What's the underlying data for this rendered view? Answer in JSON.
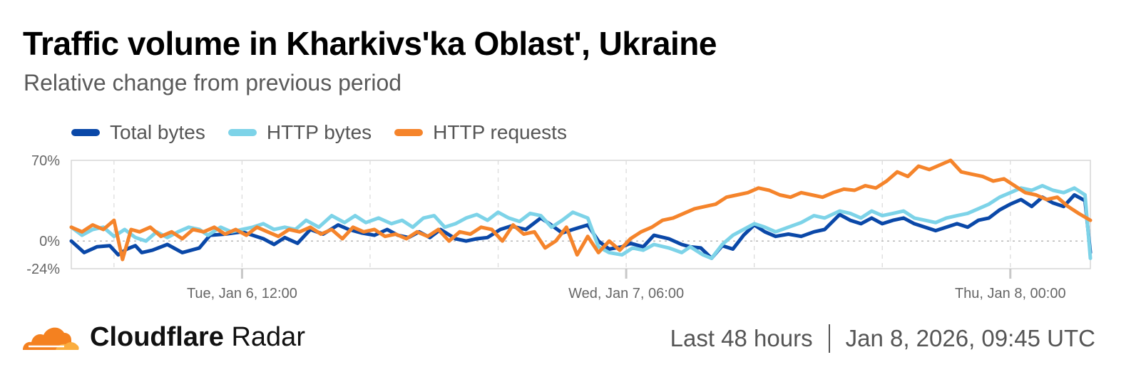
{
  "title": "Traffic volume in Kharkivs'ka Oblast', Ukraine",
  "subtitle": "Relative change from previous period",
  "footer": {
    "brand_bold": "Cloudflare",
    "brand_light": "Radar",
    "range": "Last 48 hours",
    "timestamp": "Jan 8, 2026, 09:45 UTC"
  },
  "colors": {
    "total_bytes": "#0a48a8",
    "http_bytes": "#7dd3e8",
    "http_requests": "#f5842b"
  },
  "chart_data": {
    "type": "line",
    "y_tick_labels": [
      "70%",
      "0%",
      "-24%"
    ],
    "y_ticks": [
      70,
      0,
      -24
    ],
    "ylim": [
      -24,
      70
    ],
    "x_tick_labels": [
      "Tue, Jan 6, 12:00",
      "Wed, Jan 7, 06:00",
      "Thu, Jan 8, 00:00"
    ],
    "x_tick_positions": [
      8,
      26,
      44
    ],
    "xlim": [
      0,
      47.75
    ],
    "grid": true,
    "legend_position": "top-left",
    "series": [
      {
        "name": "Total bytes",
        "color": "#0a48a8",
        "points": [
          [
            0,
            0
          ],
          [
            0.6,
            -10
          ],
          [
            1.2,
            -5
          ],
          [
            1.8,
            -4
          ],
          [
            2.2,
            -12
          ],
          [
            2.6,
            -7
          ],
          [
            3,
            -4
          ],
          [
            3.3,
            -10
          ],
          [
            3.8,
            -8
          ],
          [
            4.5,
            -3
          ],
          [
            5.2,
            -10
          ],
          [
            6,
            -6
          ],
          [
            6.5,
            5
          ],
          [
            7.2,
            6
          ],
          [
            8,
            8
          ],
          [
            8.5,
            5
          ],
          [
            9,
            2
          ],
          [
            9.5,
            -3
          ],
          [
            10,
            3
          ],
          [
            10.6,
            -2
          ],
          [
            11.2,
            10
          ],
          [
            11.8,
            6
          ],
          [
            12.5,
            14
          ],
          [
            13,
            10
          ],
          [
            13.6,
            7
          ],
          [
            14.2,
            5
          ],
          [
            14.8,
            10
          ],
          [
            15.3,
            5
          ],
          [
            15.8,
            3
          ],
          [
            16.3,
            8
          ],
          [
            16.8,
            3
          ],
          [
            17.3,
            10
          ],
          [
            18,
            2
          ],
          [
            18.5,
            0
          ],
          [
            19,
            2
          ],
          [
            19.5,
            3
          ],
          [
            20.1,
            10
          ],
          [
            20.6,
            13
          ],
          [
            21.3,
            10
          ],
          [
            22,
            20
          ],
          [
            22.4,
            15
          ],
          [
            23,
            7
          ],
          [
            23.5,
            10
          ],
          [
            24.2,
            14
          ],
          [
            24.7,
            0
          ],
          [
            25.2,
            -7
          ],
          [
            25.8,
            -5
          ],
          [
            26.2,
            -2
          ],
          [
            26.8,
            -5
          ],
          [
            27.3,
            5
          ],
          [
            28,
            2
          ],
          [
            28.6,
            -3
          ],
          [
            29,
            -5
          ],
          [
            29.5,
            -6
          ],
          [
            30,
            -15
          ],
          [
            30.5,
            -4
          ],
          [
            31,
            -7
          ],
          [
            31.5,
            5
          ],
          [
            32,
            14
          ],
          [
            32.5,
            8
          ],
          [
            33,
            4
          ],
          [
            33.6,
            6
          ],
          [
            34.2,
            4
          ],
          [
            34.8,
            8
          ],
          [
            35.3,
            10
          ],
          [
            36,
            23
          ],
          [
            36.5,
            18
          ],
          [
            37,
            15
          ],
          [
            37.5,
            20
          ],
          [
            38,
            15
          ],
          [
            38.5,
            18
          ],
          [
            39,
            20
          ],
          [
            39.5,
            15
          ],
          [
            40,
            12
          ],
          [
            40.5,
            9
          ],
          [
            41,
            12
          ],
          [
            41.5,
            15
          ],
          [
            42,
            12
          ],
          [
            42.5,
            18
          ],
          [
            43,
            20
          ],
          [
            43.5,
            27
          ],
          [
            44,
            32
          ],
          [
            44.5,
            36
          ],
          [
            45,
            30
          ],
          [
            45.5,
            38
          ],
          [
            46,
            33
          ],
          [
            46.5,
            30
          ],
          [
            47,
            40
          ],
          [
            47.5,
            35
          ],
          [
            47.75,
            -10
          ]
        ]
      },
      {
        "name": "HTTP bytes",
        "color": "#7dd3e8",
        "points": [
          [
            0,
            12
          ],
          [
            0.5,
            5
          ],
          [
            1,
            10
          ],
          [
            1.5,
            12
          ],
          [
            2,
            4
          ],
          [
            2.5,
            10
          ],
          [
            3,
            3
          ],
          [
            3.5,
            0
          ],
          [
            4,
            8
          ],
          [
            4.5,
            3
          ],
          [
            5,
            8
          ],
          [
            5.5,
            12
          ],
          [
            6,
            10
          ],
          [
            6.4,
            5
          ],
          [
            7,
            12
          ],
          [
            7.5,
            8
          ],
          [
            8,
            10
          ],
          [
            8.5,
            12
          ],
          [
            9,
            15
          ],
          [
            9.5,
            10
          ],
          [
            10,
            12
          ],
          [
            10.5,
            10
          ],
          [
            11,
            18
          ],
          [
            11.6,
            12
          ],
          [
            12.2,
            22
          ],
          [
            12.8,
            16
          ],
          [
            13.3,
            22
          ],
          [
            13.8,
            16
          ],
          [
            14.4,
            20
          ],
          [
            15,
            15
          ],
          [
            15.5,
            18
          ],
          [
            16,
            12
          ],
          [
            16.5,
            20
          ],
          [
            17,
            22
          ],
          [
            17.5,
            12
          ],
          [
            18,
            15
          ],
          [
            18.5,
            20
          ],
          [
            19,
            23
          ],
          [
            19.5,
            18
          ],
          [
            20,
            25
          ],
          [
            20.5,
            20
          ],
          [
            21,
            17
          ],
          [
            21.5,
            24
          ],
          [
            22,
            22
          ],
          [
            22.5,
            12
          ],
          [
            23,
            18
          ],
          [
            23.5,
            25
          ],
          [
            24.2,
            20
          ],
          [
            24.7,
            -5
          ],
          [
            25.2,
            -10
          ],
          [
            25.8,
            -12
          ],
          [
            26.3,
            -6
          ],
          [
            26.8,
            -8
          ],
          [
            27.3,
            -3
          ],
          [
            28,
            -6
          ],
          [
            28.6,
            -10
          ],
          [
            29,
            -5
          ],
          [
            29.6,
            -12
          ],
          [
            30,
            -15
          ],
          [
            30.5,
            -3
          ],
          [
            31,
            5
          ],
          [
            31.5,
            10
          ],
          [
            32,
            15
          ],
          [
            32.5,
            12
          ],
          [
            33,
            8
          ],
          [
            33.6,
            12
          ],
          [
            34.2,
            16
          ],
          [
            34.8,
            22
          ],
          [
            35.3,
            20
          ],
          [
            36,
            26
          ],
          [
            36.5,
            24
          ],
          [
            37,
            20
          ],
          [
            37.5,
            26
          ],
          [
            38,
            22
          ],
          [
            38.5,
            24
          ],
          [
            39,
            26
          ],
          [
            39.5,
            20
          ],
          [
            40,
            18
          ],
          [
            40.5,
            16
          ],
          [
            41,
            20
          ],
          [
            41.5,
            22
          ],
          [
            42,
            24
          ],
          [
            42.5,
            28
          ],
          [
            43,
            32
          ],
          [
            43.5,
            38
          ],
          [
            44,
            42
          ],
          [
            44.5,
            46
          ],
          [
            45,
            44
          ],
          [
            45.5,
            48
          ],
          [
            46,
            44
          ],
          [
            46.5,
            42
          ],
          [
            47,
            46
          ],
          [
            47.5,
            40
          ],
          [
            47.75,
            -15
          ]
        ]
      },
      {
        "name": "HTTP requests",
        "color": "#f5842b",
        "points": [
          [
            0,
            12
          ],
          [
            0.5,
            8
          ],
          [
            1,
            14
          ],
          [
            1.5,
            10
          ],
          [
            2,
            18
          ],
          [
            2.4,
            -16
          ],
          [
            2.8,
            10
          ],
          [
            3.2,
            8
          ],
          [
            3.7,
            12
          ],
          [
            4.2,
            4
          ],
          [
            4.7,
            8
          ],
          [
            5.2,
            2
          ],
          [
            5.7,
            10
          ],
          [
            6.2,
            8
          ],
          [
            6.7,
            12
          ],
          [
            7.2,
            6
          ],
          [
            7.7,
            10
          ],
          [
            8.2,
            5
          ],
          [
            8.7,
            12
          ],
          [
            9.2,
            8
          ],
          [
            9.7,
            4
          ],
          [
            10.2,
            10
          ],
          [
            10.7,
            8
          ],
          [
            11.2,
            12
          ],
          [
            11.7,
            6
          ],
          [
            12.2,
            10
          ],
          [
            12.7,
            2
          ],
          [
            13.2,
            12
          ],
          [
            13.7,
            8
          ],
          [
            14.2,
            10
          ],
          [
            14.7,
            4
          ],
          [
            15.2,
            6
          ],
          [
            15.7,
            2
          ],
          [
            16.2,
            8
          ],
          [
            16.7,
            4
          ],
          [
            17.2,
            10
          ],
          [
            17.7,
            0
          ],
          [
            18.2,
            8
          ],
          [
            18.7,
            6
          ],
          [
            19.2,
            12
          ],
          [
            19.7,
            10
          ],
          [
            20.2,
            0
          ],
          [
            20.7,
            14
          ],
          [
            21.2,
            6
          ],
          [
            21.7,
            8
          ],
          [
            22.2,
            -6
          ],
          [
            22.7,
            0
          ],
          [
            23.2,
            12
          ],
          [
            23.7,
            -12
          ],
          [
            24.2,
            4
          ],
          [
            24.7,
            -10
          ],
          [
            25.2,
            0
          ],
          [
            25.7,
            -8
          ],
          [
            26.2,
            2
          ],
          [
            26.7,
            8
          ],
          [
            27.2,
            12
          ],
          [
            27.7,
            18
          ],
          [
            28.2,
            20
          ],
          [
            28.7,
            24
          ],
          [
            29.2,
            28
          ],
          [
            29.7,
            30
          ],
          [
            30.2,
            32
          ],
          [
            30.7,
            38
          ],
          [
            31.2,
            40
          ],
          [
            31.7,
            42
          ],
          [
            32.2,
            46
          ],
          [
            32.7,
            44
          ],
          [
            33.2,
            40
          ],
          [
            33.7,
            38
          ],
          [
            34.2,
            42
          ],
          [
            34.7,
            40
          ],
          [
            35.2,
            38
          ],
          [
            35.7,
            42
          ],
          [
            36.2,
            45
          ],
          [
            36.7,
            44
          ],
          [
            37.2,
            48
          ],
          [
            37.7,
            46
          ],
          [
            38.2,
            52
          ],
          [
            38.7,
            60
          ],
          [
            39.2,
            56
          ],
          [
            39.7,
            65
          ],
          [
            40.2,
            62
          ],
          [
            40.7,
            66
          ],
          [
            41.2,
            70
          ],
          [
            41.7,
            60
          ],
          [
            42.2,
            58
          ],
          [
            42.7,
            56
          ],
          [
            43.2,
            52
          ],
          [
            43.7,
            54
          ],
          [
            44.2,
            48
          ],
          [
            44.7,
            42
          ],
          [
            45.2,
            40
          ],
          [
            45.7,
            36
          ],
          [
            46.2,
            38
          ],
          [
            46.7,
            30
          ],
          [
            47.2,
            24
          ],
          [
            47.75,
            18
          ]
        ]
      }
    ]
  }
}
